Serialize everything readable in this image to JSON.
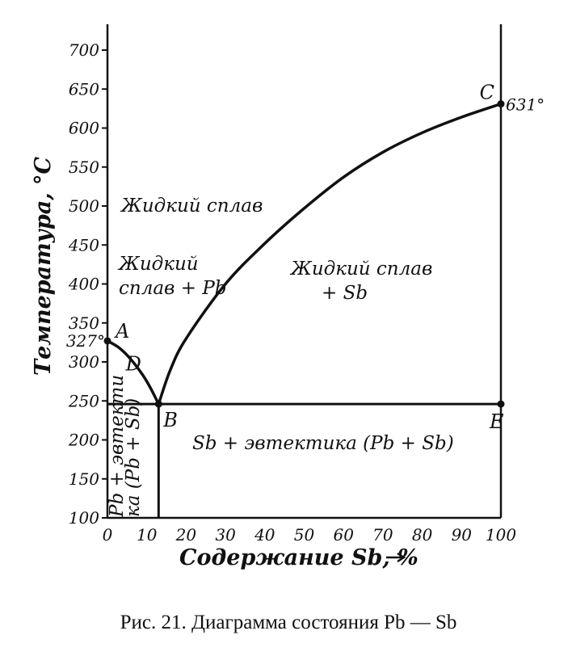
{
  "caption": "Рис. 21. Диаграмма состояния Pb — Sb",
  "chart_data": {
    "type": "phase-diagram",
    "xlabel": "Содержание Sb, %",
    "ylabel": "Температура, °С",
    "xlim": [
      0,
      100
    ],
    "ylim": [
      100,
      720
    ],
    "x_ticks": [
      "0",
      "10",
      "20",
      "30",
      "40",
      "50",
      "60",
      "70",
      "80",
      "90",
      "100"
    ],
    "y_ticks": [
      "100",
      "150",
      "200",
      "250",
      "300",
      "350",
      "400",
      "450",
      "500",
      "550",
      "600",
      "650",
      "700"
    ],
    "points": [
      {
        "name": "A",
        "x": 0,
        "y": 327,
        "annotation": "327°"
      },
      {
        "name": "B",
        "x": 13,
        "y": 246
      },
      {
        "name": "C",
        "x": 100,
        "y": 631,
        "annotation": "631°"
      },
      {
        "name": "D",
        "x": 3,
        "y": 285
      },
      {
        "name": "E",
        "x": 100,
        "y": 246
      }
    ],
    "liquidus_left": [
      [
        0,
        327
      ],
      [
        3,
        318
      ],
      [
        6,
        303
      ],
      [
        9,
        283
      ],
      [
        11,
        266
      ],
      [
        13,
        246
      ]
    ],
    "liquidus_right": [
      [
        13,
        246
      ],
      [
        16,
        290
      ],
      [
        20,
        330
      ],
      [
        30,
        400
      ],
      [
        40,
        452
      ],
      [
        50,
        497
      ],
      [
        60,
        537
      ],
      [
        70,
        569
      ],
      [
        80,
        594
      ],
      [
        90,
        614
      ],
      [
        100,
        631
      ]
    ],
    "eutectic_line": [
      [
        0,
        246
      ],
      [
        100,
        246
      ]
    ],
    "vertical_line": [
      [
        13,
        100
      ],
      [
        13,
        246
      ]
    ],
    "regions": {
      "liquid": "Жидкий сплав",
      "liquid_pb_line1": "Жидкий",
      "liquid_pb_line2": "сплав + Pb",
      "liquid_sb_line1": "Жидкий сплав",
      "liquid_sb_line2": "+ Sb",
      "sb_eutectic": "Sb + эвтектика (Pb + Sb)",
      "pb_eutectic_line1": "Pb + эвтекти",
      "pb_eutectic_line2": "ка (Pb + Sb)"
    }
  }
}
